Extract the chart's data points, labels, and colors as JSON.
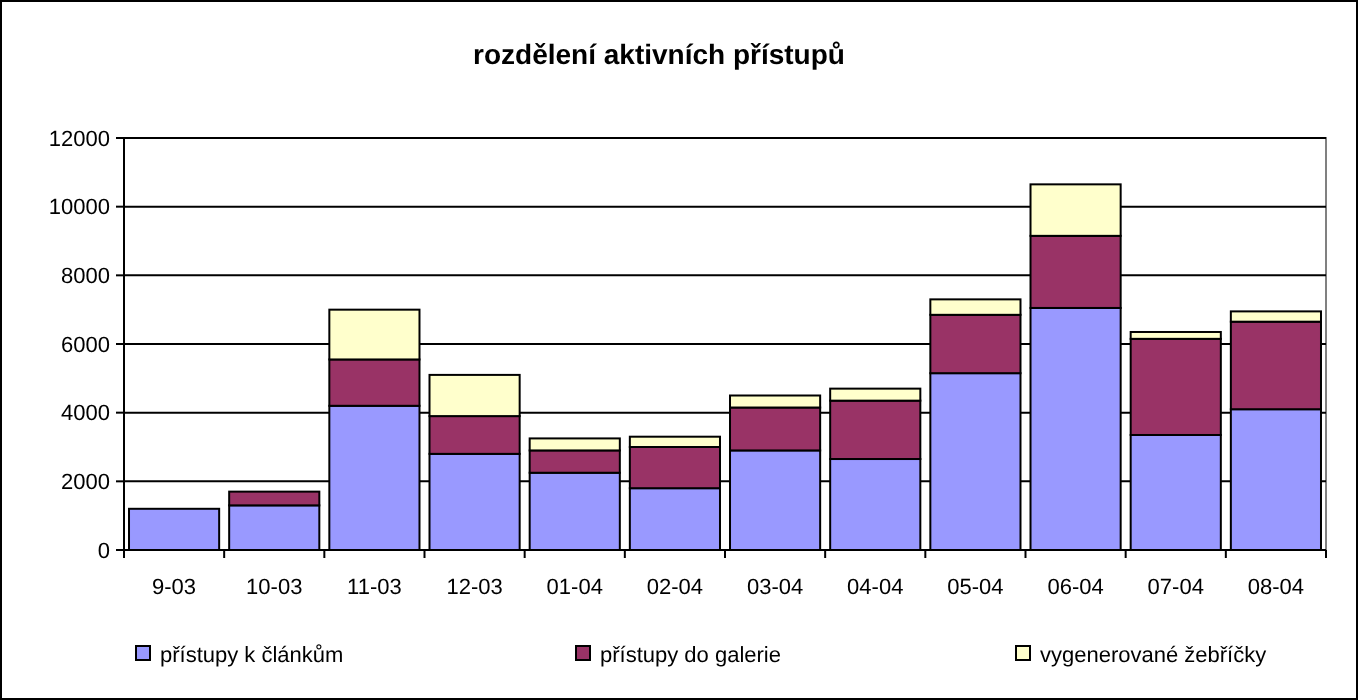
{
  "chart_data": {
    "type": "bar",
    "title": "rozdělení aktivních přístupů",
    "stacked": true,
    "categories": [
      "9-03",
      "10-03",
      "11-03",
      "12-03",
      "01-04",
      "02-04",
      "03-04",
      "04-04",
      "05-04",
      "06-04",
      "07-04",
      "08-04"
    ],
    "series": [
      {
        "name": "přístupy k článkům",
        "color": "#9999ff",
        "values": [
          1200,
          1300,
          4200,
          2800,
          2250,
          1800,
          2900,
          2650,
          5150,
          7050,
          3350,
          4100
        ]
      },
      {
        "name": "přístupy do galerie",
        "color": "#993366",
        "values": [
          0,
          400,
          1350,
          1100,
          650,
          1200,
          1250,
          1700,
          1700,
          2100,
          2800,
          2550
        ]
      },
      {
        "name": "vygenerované žebříčky",
        "color": "#ffffcc",
        "values": [
          0,
          0,
          1450,
          1200,
          350,
          300,
          350,
          350,
          450,
          1500,
          200,
          300
        ]
      }
    ],
    "ylim": [
      0,
      12000
    ],
    "yticks": [
      0,
      2000,
      4000,
      6000,
      8000,
      10000,
      12000
    ],
    "grid": "y",
    "legend": "bottom"
  }
}
